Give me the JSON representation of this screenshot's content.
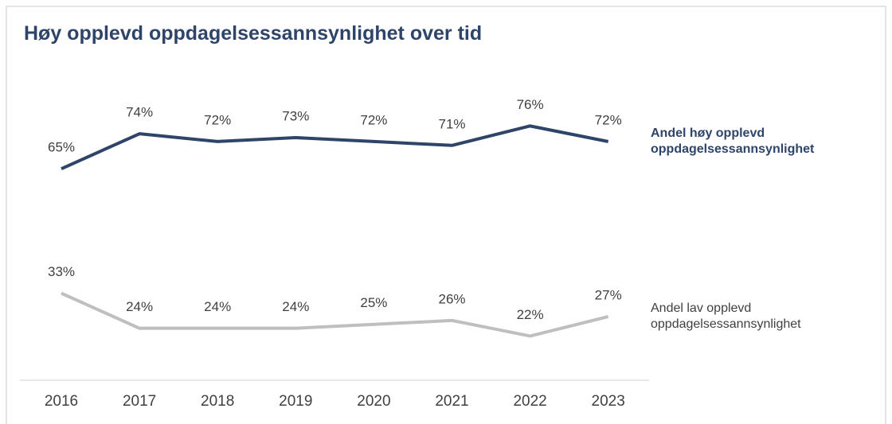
{
  "chart_data": {
    "type": "line",
    "title": "Høy opplevd oppdagelsessannsynlighet over tid",
    "categories": [
      "2016",
      "2017",
      "2018",
      "2019",
      "2020",
      "2021",
      "2022",
      "2023"
    ],
    "ylim": [
      0,
      100
    ],
    "series": [
      {
        "name": "Andel høy opplevd oppdagelsessannsynlighet",
        "color": "#2e4468",
        "values": [
          65,
          74,
          72,
          73,
          72,
          71,
          76,
          72
        ],
        "value_labels": [
          "65%",
          "74%",
          "72%",
          "73%",
          "72%",
          "71%",
          "76%",
          "72%"
        ]
      },
      {
        "name": "Andel lav opplevd oppdagelsessannsynlighet",
        "color": "#bfbfbf",
        "values": [
          33,
          24,
          24,
          24,
          25,
          26,
          22,
          27
        ],
        "value_labels": [
          "33%",
          "24%",
          "24%",
          "24%",
          "25%",
          "26%",
          "22%",
          "27%"
        ]
      }
    ]
  }
}
